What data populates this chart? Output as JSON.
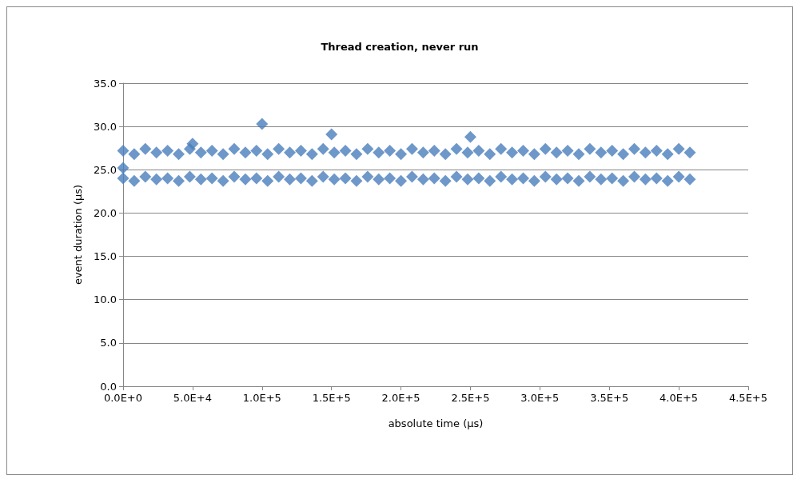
{
  "chart_data": {
    "type": "scatter",
    "title": "Thread creation, never run",
    "xlabel": "absolute time (µs)",
    "ylabel": "event duration (µs)",
    "xlim": [
      0,
      450000
    ],
    "xticks": [
      {
        "value": 0,
        "label": "0.0E+0"
      },
      {
        "value": 50000,
        "label": "5.0E+4"
      },
      {
        "value": 100000,
        "label": "1.0E+5"
      },
      {
        "value": 150000,
        "label": "1.5E+5"
      },
      {
        "value": 200000,
        "label": "2.0E+5"
      },
      {
        "value": 250000,
        "label": "2.5E+5"
      },
      {
        "value": 300000,
        "label": "3.0E+5"
      },
      {
        "value": 350000,
        "label": "3.5E+5"
      },
      {
        "value": 400000,
        "label": "4.0E+5"
      },
      {
        "value": 450000,
        "label": "4.5E+5"
      }
    ],
    "ylim": [
      0,
      35
    ],
    "yticks": [
      {
        "value": 0,
        "label": "0.0"
      },
      {
        "value": 5,
        "label": "5.0"
      },
      {
        "value": 10,
        "label": "10.0"
      },
      {
        "value": 15,
        "label": "15.0"
      },
      {
        "value": 20,
        "label": "20.0"
      },
      {
        "value": 25,
        "label": "25.0"
      },
      {
        "value": 30,
        "label": "30.0"
      },
      {
        "value": 35,
        "label": "35.0"
      }
    ],
    "grid": "y",
    "marker": "diamond",
    "series": [
      {
        "color": "#4a7ebb",
        "x": [
          0,
          8000,
          16000,
          24000,
          32000,
          40000,
          48000,
          56000,
          64000,
          72000,
          80000,
          88000,
          96000,
          104000,
          112000,
          120000,
          128000,
          136000,
          144000,
          152000,
          160000,
          168000,
          176000,
          184000,
          192000,
          200000,
          208000,
          216000,
          224000,
          232000,
          240000,
          248000,
          256000,
          264000,
          272000,
          280000,
          288000,
          296000,
          304000,
          312000,
          320000,
          328000,
          336000,
          344000,
          352000,
          360000,
          368000,
          376000,
          384000,
          392000,
          400000,
          408000,
          0,
          8000,
          16000,
          24000,
          32000,
          40000,
          48000,
          56000,
          64000,
          72000,
          80000,
          88000,
          96000,
          104000,
          112000,
          120000,
          128000,
          136000,
          144000,
          152000,
          160000,
          168000,
          176000,
          184000,
          192000,
          200000,
          208000,
          216000,
          224000,
          232000,
          240000,
          248000,
          256000,
          264000,
          272000,
          280000,
          288000,
          296000,
          304000,
          312000,
          320000,
          328000,
          336000,
          344000,
          352000,
          360000,
          368000,
          376000,
          384000,
          392000,
          400000,
          408000,
          0,
          50000,
          100000,
          150000,
          250000
        ],
        "values": [
          27.2,
          26.8,
          27.4,
          27.0,
          27.2,
          26.8,
          27.4,
          27.0,
          27.2,
          26.8,
          27.4,
          27.0,
          27.2,
          26.8,
          27.4,
          27.0,
          27.2,
          26.8,
          27.4,
          27.0,
          27.2,
          26.8,
          27.4,
          27.0,
          27.2,
          26.8,
          27.4,
          27.0,
          27.2,
          26.8,
          27.4,
          27.0,
          27.2,
          26.8,
          27.4,
          27.0,
          27.2,
          26.8,
          27.4,
          27.0,
          27.2,
          26.8,
          27.4,
          27.0,
          27.2,
          26.8,
          27.4,
          27.0,
          27.2,
          26.8,
          27.4,
          27.0,
          24.0,
          23.7,
          24.2,
          23.9,
          24.0,
          23.7,
          24.2,
          23.9,
          24.0,
          23.7,
          24.2,
          23.9,
          24.0,
          23.7,
          24.2,
          23.9,
          24.0,
          23.7,
          24.2,
          23.9,
          24.0,
          23.7,
          24.2,
          23.9,
          24.0,
          23.7,
          24.2,
          23.9,
          24.0,
          23.7,
          24.2,
          23.9,
          24.0,
          23.7,
          24.2,
          23.9,
          24.0,
          23.7,
          24.2,
          23.9,
          24.0,
          23.7,
          24.2,
          23.9,
          24.0,
          23.7,
          24.2,
          23.9,
          24.0,
          23.7,
          24.2,
          23.9,
          25.2,
          28.0,
          30.3,
          29.1,
          28.8
        ]
      }
    ]
  }
}
